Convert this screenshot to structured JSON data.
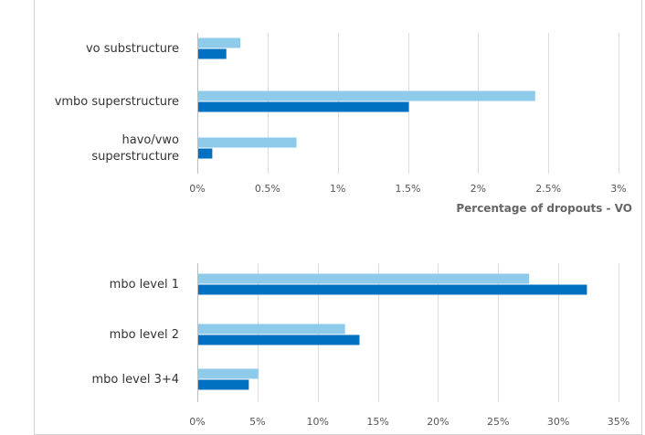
{
  "chart_data": [
    {
      "type": "bar",
      "orientation": "horizontal",
      "title": "",
      "xlabel": "Percentage of dropouts - VO",
      "ylabel": "",
      "categories": [
        "vo substructure",
        "vmbo superstructure",
        "havo/vwo\nsuperstructure"
      ],
      "series": [
        {
          "color": "#8ecbea",
          "values": [
            0.3,
            2.4,
            0.7
          ]
        },
        {
          "color": "#0070c0",
          "values": [
            0.2,
            1.5,
            0.1
          ]
        }
      ],
      "xlim": [
        0,
        3
      ],
      "ticks": [
        0,
        0.5,
        1,
        1.5,
        2,
        2.5,
        3
      ],
      "tick_labels": [
        "0%",
        "0.5%",
        "1%",
        "1.5%",
        "2%",
        "2.5%",
        "3%"
      ],
      "grid": "vertical",
      "legend": "none"
    },
    {
      "type": "bar",
      "orientation": "horizontal",
      "title": "",
      "xlabel": "",
      "ylabel": "",
      "categories": [
        "mbo level 1",
        "mbo level 2",
        "mbo level 3+4"
      ],
      "series": [
        {
          "color": "#8ecbea",
          "values": [
            27.5,
            12.2,
            5
          ]
        },
        {
          "color": "#0070c0",
          "values": [
            32.3,
            13.4,
            4.2
          ]
        }
      ],
      "xlim": [
        0,
        35
      ],
      "ticks": [
        0,
        5,
        10,
        15,
        20,
        25,
        30,
        35
      ],
      "tick_labels": [
        "0%",
        "5%",
        "10%",
        "15%",
        "20%",
        "25%",
        "30%",
        "35%"
      ],
      "grid": "vertical",
      "legend": "none"
    }
  ]
}
